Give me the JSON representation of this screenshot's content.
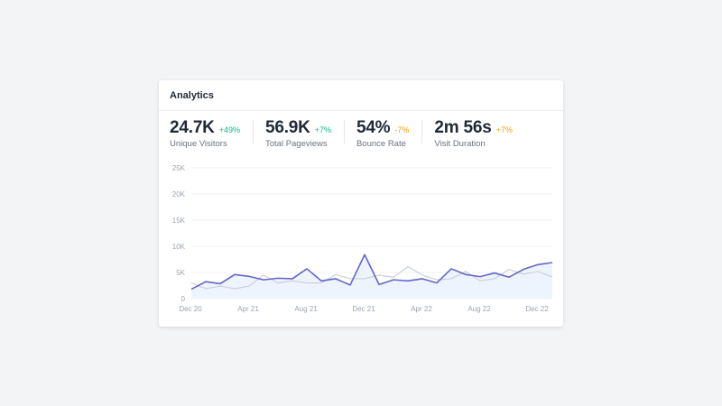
{
  "card": {
    "title": "Analytics"
  },
  "stats": [
    {
      "value": "24.7K",
      "change": "+49%",
      "label": "Unique Visitors",
      "change_color": "#10b981"
    },
    {
      "value": "56.9K",
      "change": "+7%",
      "label": "Total Pageviews",
      "change_color": "#10b981"
    },
    {
      "value": "54%",
      "change": "-7%",
      "label": "Bounce Rate",
      "change_color": "#f59e0b"
    },
    {
      "value": "2m 56s",
      "change": "+7%",
      "label": "Visit Duration",
      "change_color": "#f59e0b"
    }
  ],
  "chart_data": {
    "type": "line",
    "x_tick_labels": [
      "Dec 20",
      "Apr 21",
      "Aug 21",
      "Dec 21",
      "Apr 22",
      "Aug 22",
      "Dec 22"
    ],
    "y_tick_labels": [
      "0",
      "5K",
      "10K",
      "15K",
      "20K",
      "25K"
    ],
    "ylim": [
      0,
      25000
    ],
    "grid": true,
    "series": [
      {
        "color": "#6366c9",
        "fill": "#eef4fd",
        "values": [
          1800,
          3250,
          2850,
          4600,
          4250,
          3600,
          3900,
          3800,
          5700,
          3400,
          3800,
          2600,
          8400,
          2700,
          3600,
          3400,
          3800,
          3000,
          5700,
          4600,
          4200,
          4900,
          4100,
          5600,
          6500,
          6900
        ]
      },
      {
        "color": "#cbd0da",
        "values": [
          3000,
          1900,
          2400,
          1900,
          2400,
          4500,
          3000,
          3400,
          3000,
          3000,
          4600,
          3800,
          3800,
          4500,
          4100,
          6100,
          4500,
          3600,
          3800,
          5200,
          3400,
          3800,
          5600,
          4700,
          5200,
          4100
        ]
      }
    ]
  }
}
